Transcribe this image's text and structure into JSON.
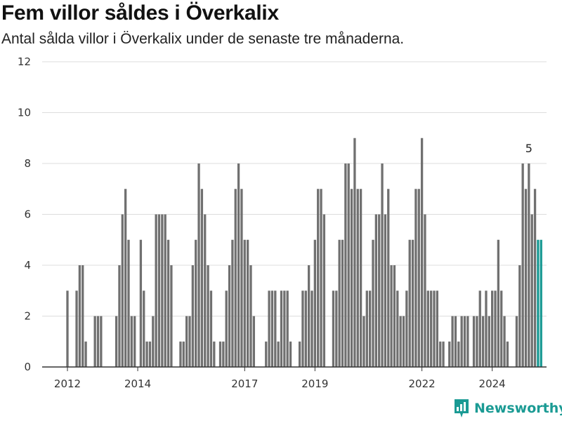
{
  "header": {
    "title": "Fem villor såldes i Överkalix",
    "subtitle": "Antal sålda villor i Överkalix under de senaste tre månaderna."
  },
  "brand": {
    "name": "Newsworthy"
  },
  "colors": {
    "bar": "#707070",
    "highlight": "#1a9a94",
    "grid": "#dddddd",
    "axis": "#333333"
  },
  "chart_data": {
    "type": "bar",
    "title": "Fem villor såldes i Överkalix",
    "subtitle": "Antal sålda villor i Överkalix under de senaste tre månaderna.",
    "xlabel": "",
    "ylabel": "",
    "ylim": [
      0,
      12
    ],
    "yticks": [
      0,
      2,
      4,
      6,
      8,
      10,
      12
    ],
    "xticks": [
      {
        "label": "2012",
        "index": 1
      },
      {
        "label": "2014",
        "index": 24
      },
      {
        "label": "2017",
        "index": 59
      },
      {
        "label": "2019",
        "index": 82
      },
      {
        "label": "2022",
        "index": 117
      },
      {
        "label": "2024",
        "index": 140
      }
    ],
    "grid": true,
    "legend": "none",
    "values": [
      0,
      3,
      0,
      0,
      3,
      4,
      4,
      1,
      0,
      0,
      2,
      2,
      2,
      0,
      0,
      0,
      0,
      2,
      4,
      6,
      7,
      5,
      2,
      2,
      0,
      5,
      3,
      1,
      1,
      2,
      6,
      6,
      6,
      6,
      5,
      4,
      0,
      0,
      1,
      1,
      2,
      2,
      4,
      5,
      8,
      7,
      6,
      4,
      3,
      1,
      0,
      1,
      1,
      3,
      4,
      5,
      7,
      8,
      7,
      5,
      5,
      4,
      2,
      0,
      0,
      0,
      1,
      3,
      3,
      3,
      1,
      3,
      3,
      3,
      1,
      0,
      0,
      1,
      3,
      3,
      4,
      3,
      5,
      7,
      7,
      6,
      0,
      0,
      3,
      3,
      5,
      5,
      8,
      8,
      7,
      9,
      7,
      7,
      2,
      3,
      3,
      5,
      6,
      6,
      8,
      6,
      7,
      4,
      4,
      3,
      2,
      2,
      3,
      5,
      5,
      7,
      7,
      9,
      6,
      3,
      3,
      3,
      3,
      1,
      1,
      0,
      1,
      2,
      2,
      1,
      2,
      2,
      2,
      0,
      2,
      2,
      3,
      2,
      3,
      2,
      3,
      3,
      5,
      3,
      2,
      1,
      0,
      0,
      2,
      4,
      8,
      7,
      8,
      6,
      7,
      5,
      5
    ],
    "highlight_last": 2,
    "annotation": {
      "text": "5",
      "index": 152
    }
  }
}
